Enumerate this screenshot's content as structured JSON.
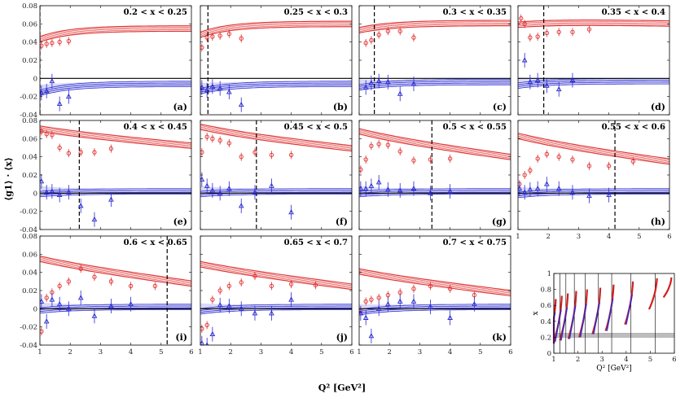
{
  "chart_data": {
    "type": "scatter",
    "ylabel": "⟨g1⟩ · ⟨x⟩",
    "xlabel": "Q² [GeV²]",
    "xlim": [
      1,
      6
    ],
    "ylim": [
      -0.04,
      0.08
    ],
    "xticks": [
      "1",
      "2",
      "3",
      "4",
      "5",
      "6"
    ],
    "yticks": [
      "0.08",
      "0.06",
      "0.04",
      "0.02",
      "0",
      "-0.02",
      "-0.04"
    ],
    "panels": [
      {
        "label": "(a)",
        "title": "0.2 < x < 0.25",
        "cut": 1.0,
        "red": [
          [
            1.05,
            0.036
          ],
          [
            1.22,
            0.038
          ],
          [
            1.4,
            0.039
          ],
          [
            1.65,
            0.04
          ],
          [
            1.95,
            0.041
          ]
        ],
        "blue": [
          [
            1.05,
            -0.016
          ],
          [
            1.22,
            -0.014
          ],
          [
            1.4,
            -0.003
          ],
          [
            1.65,
            -0.028
          ],
          [
            1.95,
            -0.02
          ]
        ]
      },
      {
        "label": "(b)",
        "title": "0.25 < x < 0.3",
        "cut": 1.25,
        "red": [
          [
            1.05,
            0.034
          ],
          [
            1.22,
            0.045
          ],
          [
            1.4,
            0.046
          ],
          [
            1.65,
            0.047
          ],
          [
            1.95,
            0.049
          ],
          [
            2.35,
            0.044
          ]
        ],
        "blue": [
          [
            1.05,
            -0.01
          ],
          [
            1.22,
            -0.013
          ],
          [
            1.4,
            -0.009
          ],
          [
            1.65,
            -0.011
          ],
          [
            1.95,
            -0.015
          ],
          [
            2.35,
            -0.029
          ]
        ]
      },
      {
        "label": "(c)",
        "title": "0.3 < x < 0.35",
        "cut": 1.5,
        "red": [
          [
            1.22,
            0.039
          ],
          [
            1.4,
            0.042
          ],
          [
            1.65,
            0.048
          ],
          [
            1.95,
            0.052
          ],
          [
            2.35,
            0.052
          ],
          [
            2.8,
            0.045
          ]
        ],
        "blue": [
          [
            1.22,
            -0.01
          ],
          [
            1.4,
            -0.005
          ],
          [
            1.65,
            -0.003
          ],
          [
            1.95,
            -0.004
          ],
          [
            2.35,
            -0.017
          ],
          [
            2.8,
            -0.006
          ]
        ]
      },
      {
        "label": "(d)",
        "title": "0.35 < x < 0.4",
        "cut": 1.85,
        "red": [
          [
            1.1,
            0.066
          ],
          [
            1.22,
            0.06
          ],
          [
            1.4,
            0.045
          ],
          [
            1.65,
            0.046
          ],
          [
            1.95,
            0.05
          ],
          [
            2.35,
            0.051
          ],
          [
            2.8,
            0.051
          ],
          [
            3.35,
            0.054
          ]
        ],
        "blue": [
          [
            1.22,
            0.02
          ],
          [
            1.4,
            -0.004
          ],
          [
            1.65,
            -0.002
          ],
          [
            1.95,
            -0.008
          ],
          [
            2.35,
            -0.012
          ],
          [
            2.8,
            -0.002
          ]
        ]
      },
      {
        "label": "(e)",
        "title": "0.4 < x < 0.45",
        "cut": 2.3,
        "red": [
          [
            1.05,
            0.068
          ],
          [
            1.22,
            0.065
          ],
          [
            1.4,
            0.064
          ],
          [
            1.65,
            0.05
          ],
          [
            1.95,
            0.044
          ],
          [
            2.35,
            0.045
          ],
          [
            2.8,
            0.045
          ],
          [
            3.35,
            0.049
          ]
        ],
        "blue": [
          [
            1.05,
            0.013
          ],
          [
            1.22,
            0.001
          ],
          [
            1.4,
            0.002
          ],
          [
            1.65,
            -0.002
          ],
          [
            1.95,
            0.001
          ],
          [
            2.35,
            -0.014
          ],
          [
            2.8,
            -0.029
          ],
          [
            3.35,
            -0.007
          ]
        ]
      },
      {
        "label": "(f)",
        "title": "0.45 < x < 0.5",
        "cut": 2.85,
        "red": [
          [
            1.05,
            0.045
          ],
          [
            1.22,
            0.062
          ],
          [
            1.4,
            0.06
          ],
          [
            1.65,
            0.058
          ],
          [
            1.95,
            0.055
          ],
          [
            2.35,
            0.04
          ],
          [
            2.8,
            0.045
          ],
          [
            3.35,
            0.042
          ],
          [
            4.0,
            0.042
          ]
        ],
        "blue": [
          [
            1.05,
            0.015
          ],
          [
            1.22,
            0.008
          ],
          [
            1.4,
            0.003
          ],
          [
            1.65,
            0.0
          ],
          [
            1.95,
            0.005
          ],
          [
            2.35,
            -0.014
          ],
          [
            2.8,
            0.001
          ],
          [
            3.35,
            0.008
          ],
          [
            4.0,
            -0.021
          ]
        ]
      },
      {
        "label": "(g)",
        "title": "0.5 < x < 0.55",
        "cut": 3.4,
        "red": [
          [
            1.05,
            0.026
          ],
          [
            1.22,
            0.037
          ],
          [
            1.4,
            0.052
          ],
          [
            1.65,
            0.054
          ],
          [
            1.95,
            0.053
          ],
          [
            2.35,
            0.046
          ],
          [
            2.8,
            0.036
          ],
          [
            3.35,
            0.037
          ],
          [
            4.0,
            0.038
          ]
        ],
        "blue": [
          [
            1.05,
            0.005
          ],
          [
            1.22,
            0.005
          ],
          [
            1.4,
            0.008
          ],
          [
            1.65,
            0.012
          ],
          [
            1.95,
            0.004
          ],
          [
            2.35,
            0.003
          ],
          [
            2.8,
            0.005
          ],
          [
            3.35,
            0.0
          ],
          [
            4.0,
            0.002
          ]
        ]
      },
      {
        "label": "(h)",
        "title": "0.55 < x < 0.6",
        "cut": 4.2,
        "red": [
          [
            1.05,
            0.01
          ],
          [
            1.22,
            0.02
          ],
          [
            1.4,
            0.025
          ],
          [
            1.65,
            0.038
          ],
          [
            1.95,
            0.043
          ],
          [
            2.35,
            0.04
          ],
          [
            2.8,
            0.037
          ],
          [
            3.35,
            0.03
          ],
          [
            4.0,
            0.03
          ],
          [
            4.8,
            0.035
          ]
        ],
        "blue": [
          [
            1.05,
            0.005
          ],
          [
            1.22,
            0.001
          ],
          [
            1.4,
            0.004
          ],
          [
            1.65,
            0.005
          ],
          [
            1.95,
            0.01
          ],
          [
            2.35,
            0.005
          ],
          [
            2.8,
            0.001
          ],
          [
            3.35,
            -0.003
          ],
          [
            4.0,
            -0.002
          ]
        ]
      },
      {
        "label": "(i)",
        "title": "0.6 < x < 0.65",
        "cut": 5.2,
        "red": [
          [
            1.05,
            -0.025
          ],
          [
            1.22,
            0.012
          ],
          [
            1.4,
            0.018
          ],
          [
            1.65,
            0.025
          ],
          [
            1.95,
            0.03
          ],
          [
            2.35,
            0.044
          ],
          [
            2.8,
            0.035
          ],
          [
            3.35,
            0.03
          ],
          [
            4.0,
            0.025
          ],
          [
            4.8,
            0.025
          ]
        ],
        "blue": [
          [
            1.05,
            0.008
          ],
          [
            1.22,
            -0.014
          ],
          [
            1.4,
            0.01
          ],
          [
            1.65,
            0.005
          ],
          [
            1.95,
            0.0
          ],
          [
            2.35,
            0.012
          ],
          [
            2.8,
            -0.008
          ],
          [
            3.35,
            0.003
          ],
          [
            4.0,
            0.005
          ]
        ]
      },
      {
        "label": "(j)",
        "title": "0.65 < x < 0.7",
        "cut": null,
        "red": [
          [
            1.05,
            -0.022
          ],
          [
            1.22,
            -0.018
          ],
          [
            1.4,
            0.01
          ],
          [
            1.65,
            0.02
          ],
          [
            1.95,
            0.025
          ],
          [
            2.35,
            0.029
          ],
          [
            2.8,
            0.036
          ],
          [
            3.35,
            0.025
          ],
          [
            4.0,
            0.027
          ],
          [
            4.8,
            0.026
          ]
        ],
        "blue": [
          [
            1.05,
            -0.038
          ],
          [
            1.22,
            -0.04
          ],
          [
            1.4,
            -0.028
          ],
          [
            1.65,
            0.004
          ],
          [
            1.95,
            0.003
          ],
          [
            2.35,
            0.0
          ],
          [
            2.8,
            -0.005
          ],
          [
            3.35,
            -0.005
          ],
          [
            4.0,
            0.01
          ]
        ]
      },
      {
        "label": "(k)",
        "title": "0.7 < x < 0.75",
        "cut": null,
        "red": [
          [
            1.05,
            -0.002
          ],
          [
            1.22,
            0.008
          ],
          [
            1.4,
            0.01
          ],
          [
            1.65,
            0.012
          ],
          [
            1.95,
            0.015
          ],
          [
            2.35,
            0.018
          ],
          [
            2.8,
            0.022
          ],
          [
            3.35,
            0.025
          ],
          [
            4.0,
            0.022
          ],
          [
            4.8,
            0.015
          ]
        ],
        "blue": [
          [
            1.05,
            -0.005
          ],
          [
            1.22,
            -0.01
          ],
          [
            1.4,
            -0.03
          ],
          [
            1.65,
            0.0
          ],
          [
            1.95,
            0.005
          ],
          [
            2.35,
            0.008
          ],
          [
            2.8,
            0.008
          ],
          [
            3.35,
            0.002
          ],
          [
            4.0,
            -0.01
          ],
          [
            4.8,
            0.005
          ]
        ]
      }
    ],
    "kinematics": {
      "ylabel": "x",
      "xlabel": "Q² [GeV²]",
      "xlim": [
        1,
        6
      ],
      "ylim": [
        0,
        1
      ],
      "xticks": [
        "1",
        "2",
        "3",
        "4",
        "5",
        "6"
      ],
      "yticks": [
        "1",
        "0.8",
        "0.6",
        "0.4",
        "0.2",
        "0"
      ],
      "xbin_lines": [
        1.0,
        1.25,
        1.5,
        1.85,
        2.3,
        2.85,
        3.4,
        4.2,
        5.2
      ],
      "band": [
        0.2,
        0.25
      ]
    }
  }
}
